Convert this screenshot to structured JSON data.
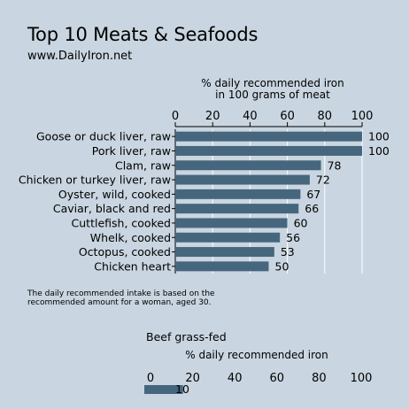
{
  "chart_data": [
    {
      "type": "bar",
      "orientation": "horizontal",
      "title": "Top 10 Meats & Seafoods",
      "subtitle": "www.DailyIron.net",
      "xlabel": "% daily recommended iron\nin 100 grams of meat",
      "xlim": [
        0,
        100
      ],
      "xticks": [
        0,
        20,
        40,
        60,
        80,
        100
      ],
      "grid": true,
      "bar_color": "#46667e",
      "categories": [
        "Goose or duck liver, raw",
        "Pork liver, raw",
        "Clam, raw",
        "Chicken or turkey liver, raw",
        "Oyster, wild, cooked",
        "Caviar, black and red",
        "Cuttlefish, cooked",
        "Whelk, cooked",
        "Octopus, cooked",
        "Chicken heart"
      ],
      "values": [
        100,
        100,
        78,
        72,
        67,
        66,
        60,
        56,
        53,
        50
      ],
      "data_labels": [
        "100",
        "100",
        "78",
        "72",
        "67",
        "66",
        "60",
        "56",
        "53",
        "50"
      ],
      "note": "The daily recommended intake is based on the\nrecommended amount for a woman, aged 30."
    },
    {
      "type": "bar",
      "orientation": "horizontal",
      "title": "Beef grass-fed",
      "xlabel": "% daily recommended iron",
      "xlim": [
        0,
        100
      ],
      "xticks": [
        0,
        20,
        40,
        60,
        80,
        100
      ],
      "grid": false,
      "bar_color": "#46667e",
      "values": [
        10
      ],
      "data_labels": [
        "10"
      ]
    }
  ],
  "colors": {
    "background": "#c9d5e0",
    "bar": "#46667e",
    "grid": "#ffffff"
  }
}
